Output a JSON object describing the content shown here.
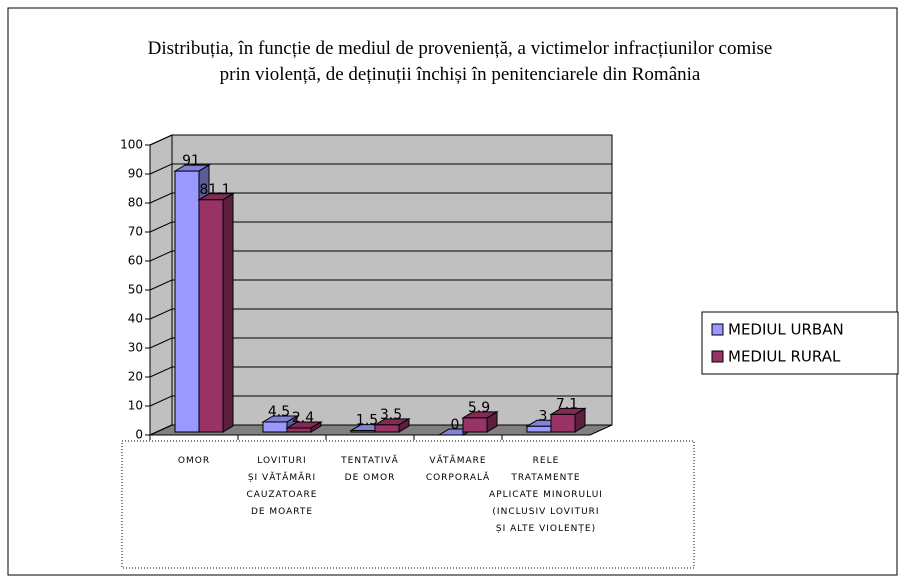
{
  "chart_data": {
    "type": "bar3d",
    "title": "Distribuția, în funcție de mediul de proveniență, a victimelor infracțiunilor comise\nprin violență, de deținuții închiși în penitenciarele din România",
    "categories": [
      "OMOR",
      "LOVITURI\nȘI VĂTĂMĂRI\nCAUZATOARE\nDE MOARTE",
      "TENTATIVĂ\nDE OMOR",
      "VĂTĂMARE\nCORPORALĂ",
      "RELE\nTRATAMENTE\nAPLICATE MINORULUI\n(INCLUSIV LOVITURI\nȘI ALTE VIOLENȚE)"
    ],
    "series": [
      {
        "name": "MEDIUL URBAN",
        "color": "#9999ff",
        "values": [
          91,
          4.5,
          1.5,
          0,
          3
        ]
      },
      {
        "name": "MEDIUL RURAL",
        "color": "#993366",
        "values": [
          81.1,
          2.4,
          3.5,
          5.9,
          7.1
        ]
      }
    ],
    "ylim": [
      0,
      100
    ],
    "yticks": [
      0,
      10,
      20,
      30,
      40,
      50,
      60,
      70,
      80,
      90,
      100
    ],
    "grid": true,
    "legend": "right"
  }
}
